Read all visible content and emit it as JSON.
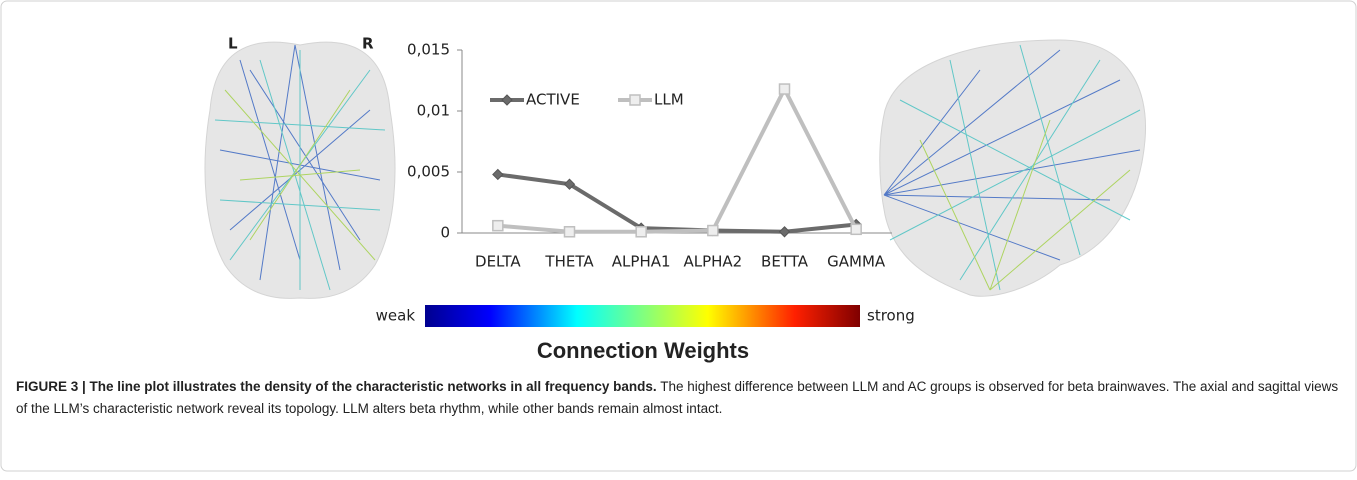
{
  "chart_data": {
    "type": "line",
    "categories": [
      "DELTA",
      "THETA",
      "ALPHA1",
      "ALPHA2",
      "BETTA",
      "GAMMA"
    ],
    "series": [
      {
        "name": "ACTIVE",
        "color": "#6b6b6b",
        "marker": "diamond",
        "values": [
          0.0048,
          0.004,
          0.0004,
          0.0002,
          0.0001,
          0.0007
        ]
      },
      {
        "name": "LLM",
        "color": "#bfbfbf",
        "marker": "square",
        "values": [
          0.0006,
          0.0001,
          0.0001,
          0.0002,
          0.0118,
          0.0003
        ]
      }
    ],
    "ylim": [
      0,
      0.015
    ],
    "yticks": [
      0,
      {
        "value": 0.005,
        "label": "0,005"
      },
      {
        "value": 0.01,
        "label": "0,01"
      },
      {
        "value": 0.015,
        "label": "0,015"
      }
    ],
    "grid": false,
    "legend": "top-left"
  },
  "brain": {
    "left_label": "L",
    "right_label": "R"
  },
  "colorbar": {
    "low": "weak",
    "high": "strong",
    "title": "Connection Weights"
  },
  "caption": {
    "heading": "FIGURE 3 | The line plot illustrates the density of the characteristic networks in all frequency bands.",
    "text": "The highest difference between LLM and AC groups is observed for beta brainwaves. The axial and sagittal views of the LLM’s characteristic network reveal its topology. LLM alters beta rhythm, while other bands remain almost intact."
  }
}
